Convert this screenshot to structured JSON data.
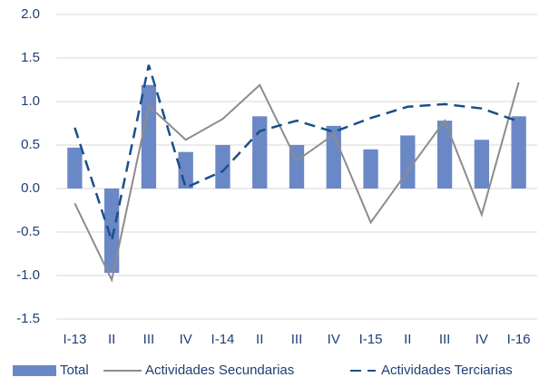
{
  "chart_data": {
    "type": "bar",
    "categories": [
      "I-13",
      "II",
      "III",
      "IV",
      "I-14",
      "II",
      "III",
      "IV",
      "I-15",
      "II",
      "III",
      "IV",
      "I-16"
    ],
    "series": [
      {
        "name": "Total",
        "type": "bar",
        "color": "#6b88c6",
        "values": [
          0.47,
          -0.97,
          1.19,
          0.42,
          0.5,
          0.83,
          0.5,
          0.72,
          0.45,
          0.61,
          0.78,
          0.56,
          0.83
        ]
      },
      {
        "name": "Actividades Secundarias",
        "type": "line",
        "color": "#8c8c8c",
        "values": [
          -0.17,
          -1.05,
          0.95,
          0.56,
          0.8,
          1.19,
          0.32,
          0.62,
          -0.39,
          0.2,
          0.78,
          -0.3,
          1.22
        ]
      },
      {
        "name": "Actividades Terciarias",
        "type": "line",
        "dashed": true,
        "color": "#1a4f8b",
        "values": [
          0.7,
          -0.6,
          1.42,
          0.01,
          0.2,
          0.66,
          0.78,
          0.65,
          0.81,
          0.94,
          0.97,
          0.92,
          0.77
        ]
      }
    ],
    "ylim": [
      -1.5,
      2.0
    ],
    "yticks": [
      {
        "value": -1.5,
        "label": "-1.5"
      },
      {
        "value": -1.0,
        "label": "-1.0"
      },
      -0.5,
      {
        "value": 0,
        "label": "0.0"
      },
      0.5,
      {
        "value": 1,
        "label": "1.0"
      },
      1.5,
      {
        "value": 2,
        "label": "2.0"
      }
    ],
    "grid": true,
    "legend": "bottom"
  }
}
